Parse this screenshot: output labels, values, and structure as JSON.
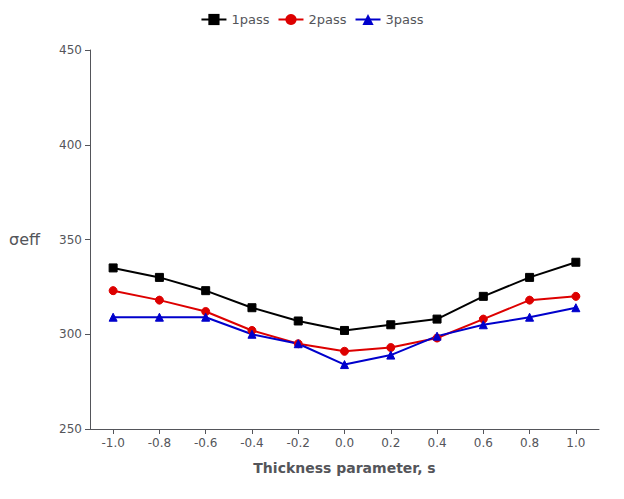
{
  "chart_data": {
    "type": "line",
    "xlabel": "Thickness parameter, s",
    "ylabel": "σeff",
    "x": [
      -1.0,
      -0.8,
      -0.6,
      -0.4,
      -0.2,
      0.0,
      0.2,
      0.4,
      0.6,
      0.8,
      1.0
    ],
    "series": [
      {
        "name": "1pass",
        "color": "#000000",
        "marker": "square",
        "values": [
          335,
          330,
          323,
          314,
          307,
          302,
          305,
          308,
          320,
          330,
          338
        ]
      },
      {
        "name": "2pass",
        "color": "#dd0000",
        "marker": "circle",
        "values": [
          323,
          318,
          312,
          302,
          295,
          291,
          293,
          298,
          308,
          318,
          320
        ]
      },
      {
        "name": "3pass",
        "color": "#0000cc",
        "marker": "triangle",
        "values": [
          309,
          309,
          309,
          300,
          295,
          284,
          289,
          299,
          305,
          309,
          314
        ]
      }
    ],
    "xlim": [
      -1.1,
      1.1
    ],
    "xticks": [
      {
        "value": -1.0,
        "label": "-1.0"
      },
      -0.8,
      -0.6,
      -0.4,
      -0.2,
      {
        "value": 0.0,
        "label": "0.0"
      },
      0.2,
      0.4,
      0.6,
      0.8,
      {
        "value": 1.0,
        "label": "1.0"
      }
    ],
    "ylim": [
      250,
      450
    ],
    "yticks": [
      250,
      300,
      350,
      400,
      450
    ],
    "grid": false,
    "legend": "upper center"
  }
}
